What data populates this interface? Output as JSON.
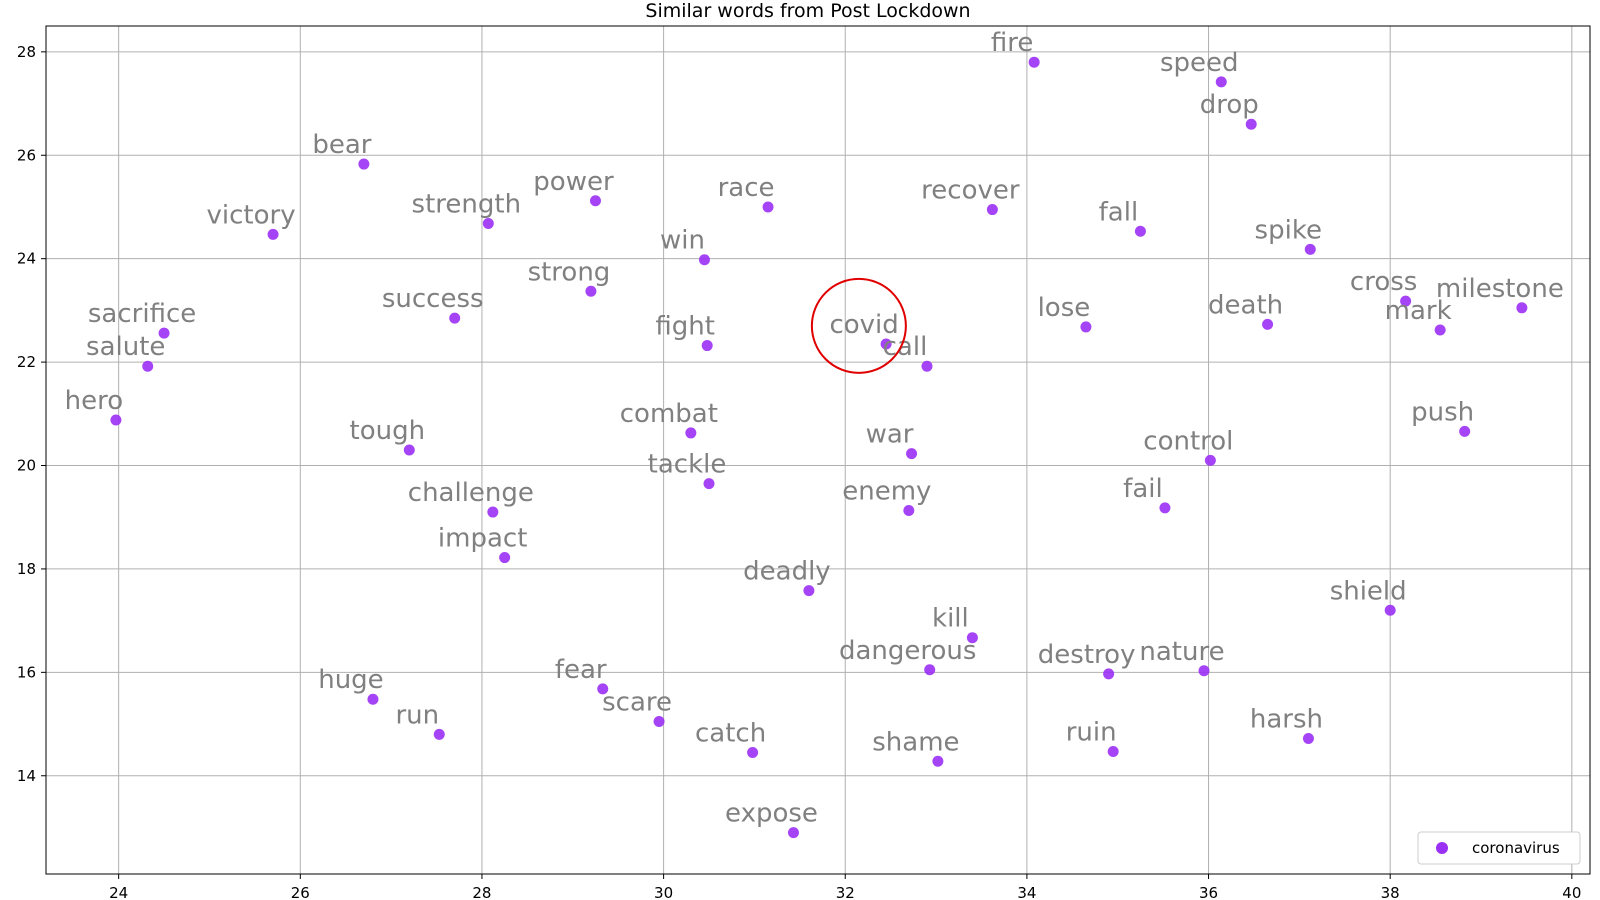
{
  "chart_data": {
    "type": "scatter",
    "title": "Similar words from Post Lockdown",
    "xlabel": "",
    "ylabel": "",
    "xlim": [
      23.2,
      40.2
    ],
    "ylim": [
      12.1,
      28.5
    ],
    "xticks": [
      24,
      26,
      28,
      30,
      32,
      34,
      36,
      38,
      40
    ],
    "yticks": [
      14,
      16,
      18,
      20,
      22,
      24,
      26,
      28
    ],
    "grid": true,
    "legend_position": "lower-right",
    "point_color": "#9b30f5",
    "annotation_color": "#808080",
    "highlight": {
      "label": "covid",
      "x": 32.15,
      "y": 22.7,
      "color": "#e00000"
    },
    "series": [
      {
        "name": "coronavirus",
        "points": [
          {
            "label": "fire",
            "x": 34.08,
            "y": 27.8
          },
          {
            "label": "speed",
            "x": 36.14,
            "y": 27.42
          },
          {
            "label": "drop",
            "x": 36.47,
            "y": 26.6
          },
          {
            "label": "bear",
            "x": 26.7,
            "y": 25.83
          },
          {
            "label": "power",
            "x": 29.25,
            "y": 25.12
          },
          {
            "label": "race",
            "x": 31.15,
            "y": 25.0
          },
          {
            "label": "recover",
            "x": 33.62,
            "y": 24.95
          },
          {
            "label": "strength",
            "x": 28.07,
            "y": 24.68
          },
          {
            "label": "fall",
            "x": 35.25,
            "y": 24.53
          },
          {
            "label": "victory",
            "x": 25.7,
            "y": 24.47
          },
          {
            "label": "spike",
            "x": 37.12,
            "y": 24.18
          },
          {
            "label": "win",
            "x": 30.45,
            "y": 23.98
          },
          {
            "label": "strong",
            "x": 29.2,
            "y": 23.37
          },
          {
            "label": "cross",
            "x": 38.17,
            "y": 23.18
          },
          {
            "label": "milestone",
            "x": 39.45,
            "y": 23.05
          },
          {
            "label": "success",
            "x": 27.7,
            "y": 22.85
          },
          {
            "label": "death",
            "x": 36.65,
            "y": 22.73
          },
          {
            "label": "lose",
            "x": 34.65,
            "y": 22.68
          },
          {
            "label": "mark",
            "x": 38.55,
            "y": 22.62
          },
          {
            "label": "sacrifice",
            "x": 24.5,
            "y": 22.56
          },
          {
            "label": "covid",
            "x": 32.45,
            "y": 22.35
          },
          {
            "label": "fight",
            "x": 30.48,
            "y": 22.32
          },
          {
            "label": "call",
            "x": 32.9,
            "y": 21.92
          },
          {
            "label": "salute",
            "x": 24.32,
            "y": 21.92
          },
          {
            "label": "hero",
            "x": 23.97,
            "y": 20.88
          },
          {
            "label": "push",
            "x": 38.82,
            "y": 20.66
          },
          {
            "label": "combat",
            "x": 30.3,
            "y": 20.63
          },
          {
            "label": "tough",
            "x": 27.2,
            "y": 20.3
          },
          {
            "label": "war",
            "x": 32.73,
            "y": 20.23
          },
          {
            "label": "control",
            "x": 36.02,
            "y": 20.1
          },
          {
            "label": "tackle",
            "x": 30.5,
            "y": 19.65
          },
          {
            "label": "fail",
            "x": 35.52,
            "y": 19.18
          },
          {
            "label": "enemy",
            "x": 32.7,
            "y": 19.13
          },
          {
            "label": "challenge",
            "x": 28.12,
            "y": 19.1
          },
          {
            "label": "impact",
            "x": 28.25,
            "y": 18.22
          },
          {
            "label": "deadly",
            "x": 31.6,
            "y": 17.58
          },
          {
            "label": "shield",
            "x": 38.0,
            "y": 17.2
          },
          {
            "label": "kill",
            "x": 33.4,
            "y": 16.67
          },
          {
            "label": "dangerous",
            "x": 32.93,
            "y": 16.05
          },
          {
            "label": "nature",
            "x": 35.95,
            "y": 16.03
          },
          {
            "label": "destroy",
            "x": 34.9,
            "y": 15.97
          },
          {
            "label": "fear",
            "x": 29.33,
            "y": 15.68
          },
          {
            "label": "huge",
            "x": 26.8,
            "y": 15.48
          },
          {
            "label": "scare",
            "x": 29.95,
            "y": 15.05
          },
          {
            "label": "run",
            "x": 27.53,
            "y": 14.8
          },
          {
            "label": "harsh",
            "x": 37.1,
            "y": 14.72
          },
          {
            "label": "ruin",
            "x": 34.95,
            "y": 14.47
          },
          {
            "label": "catch",
            "x": 30.98,
            "y": 14.45
          },
          {
            "label": "shame",
            "x": 33.02,
            "y": 14.28
          },
          {
            "label": "expose",
            "x": 31.43,
            "y": 12.9
          }
        ]
      }
    ]
  }
}
